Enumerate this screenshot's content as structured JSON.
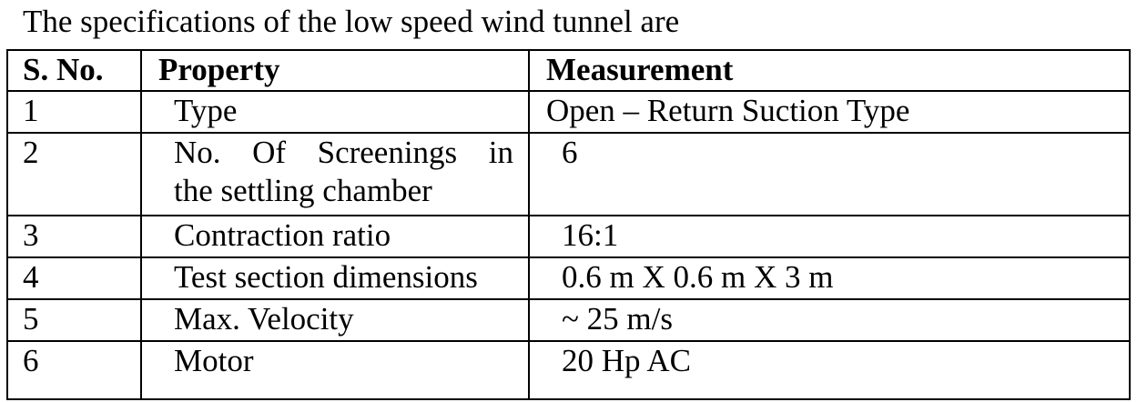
{
  "intro_text": "The specifications of the low speed wind tunnel are",
  "table": {
    "headers": [
      "S. No.",
      "Property",
      "Measurement"
    ],
    "rows": [
      {
        "sno": "1",
        "property": "Type",
        "measurement": "Open – Return Suction Type"
      },
      {
        "sno": "2",
        "property_line1": "No. Of Screenings in",
        "property_line2": "the settling chamber",
        "measurement": "6"
      },
      {
        "sno": "3",
        "property": "Contraction ratio",
        "measurement": "16:1"
      },
      {
        "sno": "4",
        "property": "Test section dimensions",
        "measurement": "0.6 m X 0.6 m X 3 m"
      },
      {
        "sno": "5",
        "property": "Max. Velocity",
        "measurement": "~ 25 m/s"
      },
      {
        "sno": "6",
        "property": "Motor",
        "measurement": "20 Hp AC"
      }
    ]
  }
}
